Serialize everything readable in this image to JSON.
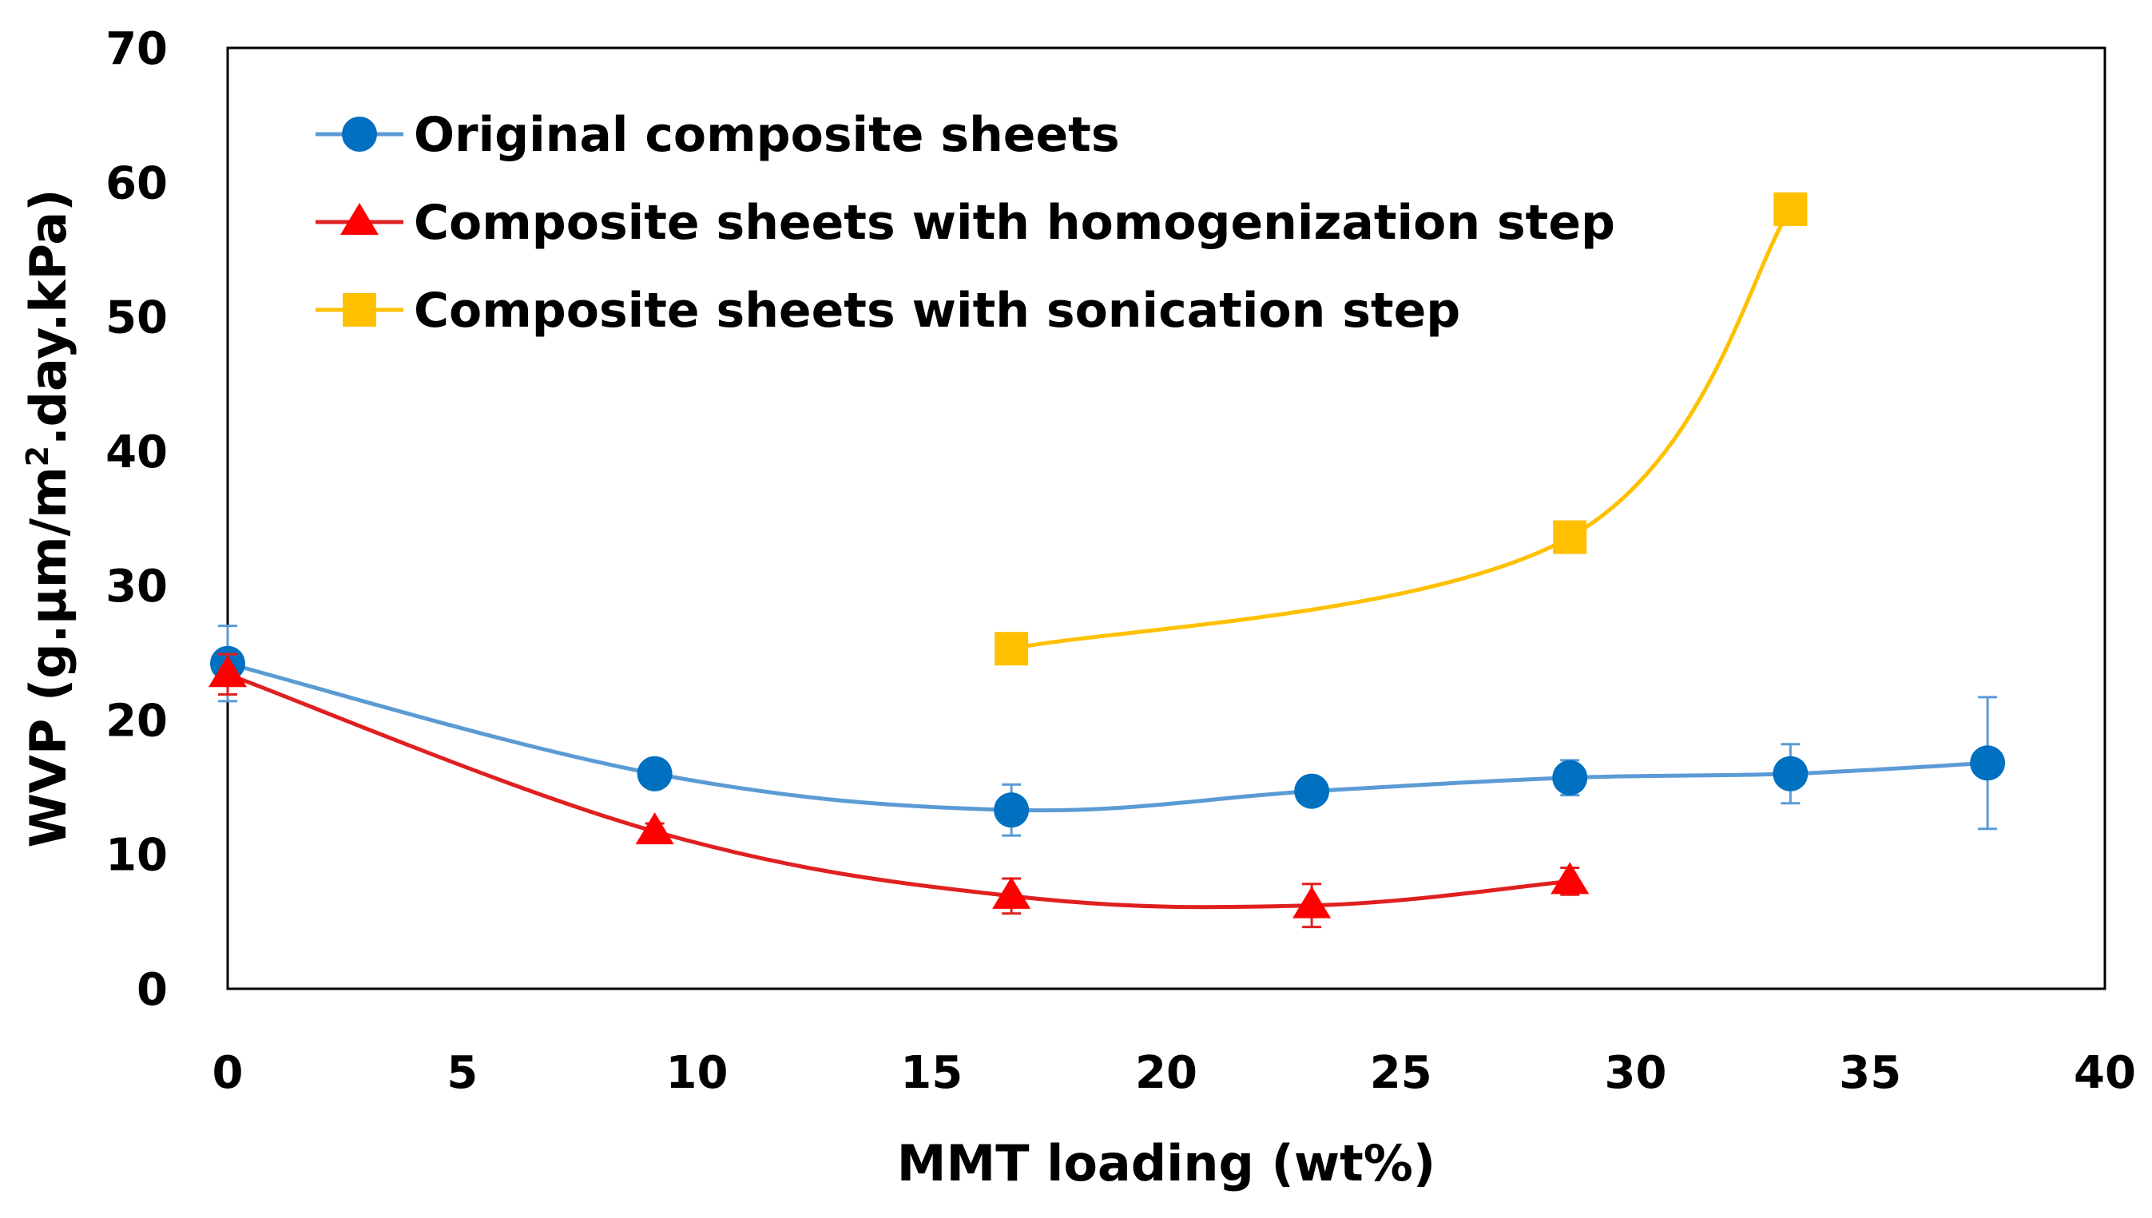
{
  "chart_data": {
    "type": "line",
    "title": "",
    "xlabel": "MMT loading (wt%)",
    "ylabel": {
      "main": "WVP (g.µm/m",
      "sup": "2",
      "rest": ".day.kPa)"
    },
    "xlim": [
      0,
      40
    ],
    "ylim": [
      0,
      70
    ],
    "xticks": [
      0,
      5,
      10,
      15,
      20,
      25,
      30,
      35,
      40
    ],
    "yticks": [
      0,
      10,
      20,
      30,
      40,
      50,
      60,
      70
    ],
    "grid": false,
    "legend_position": "top-left",
    "series": [
      {
        "name": "Original composite sheets",
        "color": "#0070C0",
        "line_color": "#5B9BD5",
        "marker": "circle",
        "x": [
          0,
          9.1,
          16.7,
          23.1,
          28.6,
          33.3,
          37.5
        ],
        "y": [
          24.2,
          16.0,
          13.3,
          14.7,
          15.7,
          16.0,
          16.8
        ],
        "err": [
          2.8,
          0.9,
          1.9,
          0.7,
          1.3,
          2.2,
          4.9
        ]
      },
      {
        "name": "Composite sheets with homogenization step",
        "color": "#FF0000",
        "line_color": "#E02020",
        "marker": "triangle",
        "x": [
          0,
          9.1,
          16.7,
          23.1,
          28.6
        ],
        "y": [
          23.4,
          11.7,
          6.9,
          6.2,
          8.0
        ],
        "err": [
          1.5,
          0.6,
          1.3,
          1.6,
          1.0
        ]
      },
      {
        "name": "Composite sheets with sonication step",
        "color": "#FFC000",
        "line_color": "#FFC000",
        "marker": "square",
        "x": [
          16.7,
          28.6,
          33.3
        ],
        "y": [
          25.3,
          33.6,
          58.0
        ],
        "err": [
          0,
          0,
          0
        ]
      }
    ]
  }
}
